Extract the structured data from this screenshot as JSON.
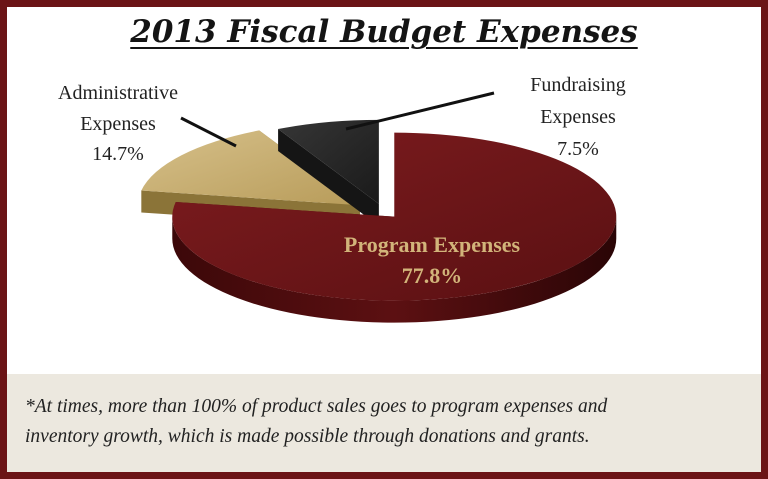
{
  "colors": {
    "border": "#6b1416",
    "program": "#6a1518",
    "administrative": "#c8b170",
    "fundraising": "#262626",
    "label_in_slice": "#d2b47a",
    "footnote_bg": "#ece8df"
  },
  "chart_data": {
    "type": "pie",
    "style": "3d-exploded",
    "title": "2013 Fiscal Budget Expenses",
    "slices": [
      {
        "label": "Program Expenses",
        "value": 77.8,
        "value_label": "77.8%",
        "color": "#6a1518"
      },
      {
        "label": "Administrative Expenses",
        "value": 14.7,
        "value_label": "14.7%",
        "color": "#c8b170"
      },
      {
        "label": "Fundraising Expenses",
        "value": 7.5,
        "value_label": "7.5%",
        "color": "#262626"
      }
    ],
    "external_labels": {
      "administrative": [
        "Administrative",
        "Expenses",
        "14.7%"
      ],
      "fundraising": [
        "Fundraising",
        "Expenses",
        "7.5%"
      ]
    }
  },
  "footnote": {
    "line1": "*At times, more than 100% of product sales goes to program expenses and",
    "line2": "inventory growth, which is made possible through donations and grants."
  }
}
